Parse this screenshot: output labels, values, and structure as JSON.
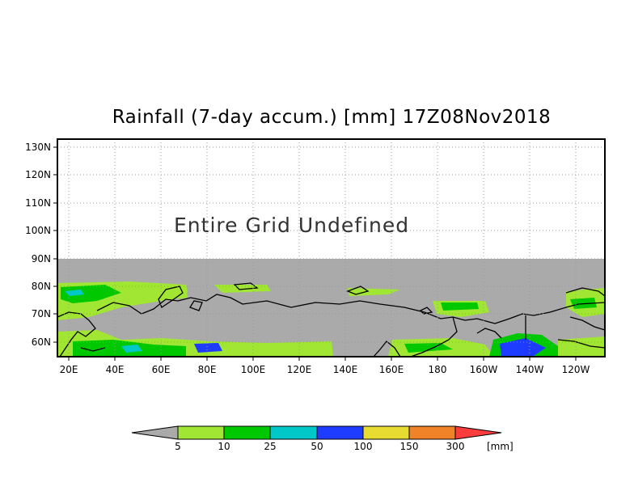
{
  "map": {
    "title": "Rainfall (7-day accum.) [mm] 17Z08Nov2018",
    "annotation": "Entire Grid Undefined",
    "lat_ticks": [
      "130N",
      "120N",
      "110N",
      "100N",
      "90N",
      "80N",
      "70N",
      "60N"
    ],
    "lon_ticks": [
      "20E",
      "40E",
      "60E",
      "80E",
      "100E",
      "120E",
      "140E",
      "160E",
      "180",
      "160W",
      "140W",
      "120W"
    ],
    "undefined_color": "#aaaaaa",
    "grid": true
  },
  "colorbar": {
    "labels": [
      "5",
      "10",
      "25",
      "50",
      "100",
      "150",
      "300"
    ],
    "unit": "[mm]",
    "colors": [
      "#aaaaaa",
      "#a0e632",
      "#00c800",
      "#00c8c8",
      "#1e3cff",
      "#e6dc32",
      "#f08228",
      "#fa3c3c"
    ]
  }
}
